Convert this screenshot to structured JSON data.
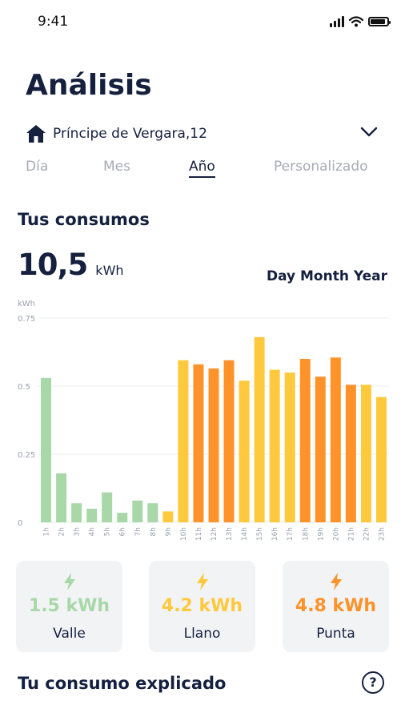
{
  "status_bar": {
    "time": "9:41",
    "battery_level": 1.0
  },
  "header": {
    "title": "Análisis"
  },
  "address": {
    "label": "Príncipe de Vergara,12"
  },
  "tabs": [
    {
      "label": "Día",
      "active": false
    },
    {
      "label": "Mes",
      "active": false
    },
    {
      "label": "Año",
      "active": true
    },
    {
      "label": "Personalizado",
      "active": false
    }
  ],
  "consumption": {
    "section_title": "Tus consumos",
    "total_value": "10,5",
    "total_unit": "kWh",
    "period_toggle": "Day Month Year"
  },
  "colors": {
    "valle": "#a8d8a8",
    "llano": "#ffc93d",
    "punta": "#ff9229",
    "text": "#15203f"
  },
  "chart_data": {
    "type": "bar",
    "ylabel": "kWh",
    "ylim": [
      0,
      0.75
    ],
    "yticks": [
      "0",
      "0.25",
      "0.5",
      "0.75"
    ],
    "grid": true,
    "categories": [
      "1h",
      "2h",
      "3h",
      "4h",
      "5h",
      "6h",
      "7h",
      "8h",
      "9h",
      "10h",
      "11h",
      "12h",
      "13h",
      "14h",
      "15h",
      "16h",
      "17h",
      "18h",
      "19h",
      "20h",
      "21h",
      "22h",
      "23h"
    ],
    "values": [
      0.53,
      0.18,
      0.07,
      0.05,
      0.11,
      0.035,
      0.08,
      0.07,
      0.04,
      0.595,
      0.58,
      0.565,
      0.595,
      0.52,
      0.68,
      0.56,
      0.55,
      0.6,
      0.535,
      0.605,
      0.505,
      0.505,
      0.46
    ],
    "series_colors": [
      "valle",
      "valle",
      "valle",
      "valle",
      "valle",
      "valle",
      "valle",
      "valle",
      "llano",
      "llano",
      "punta",
      "punta",
      "punta",
      "llano",
      "llano",
      "llano",
      "llano",
      "punta",
      "punta",
      "punta",
      "punta",
      "llano",
      "llano"
    ]
  },
  "summary_cards": [
    {
      "value": "1.5 kWh",
      "label": "Valle",
      "color": "#a8d8a8"
    },
    {
      "value": "4.2 kWh",
      "label": "Llano",
      "color": "#ffc93d"
    },
    {
      "value": "4.8 kWh",
      "label": "Punta",
      "color": "#ff9229"
    }
  ],
  "explained": {
    "title": "Tu consumo explicado",
    "help_icon": "?"
  }
}
